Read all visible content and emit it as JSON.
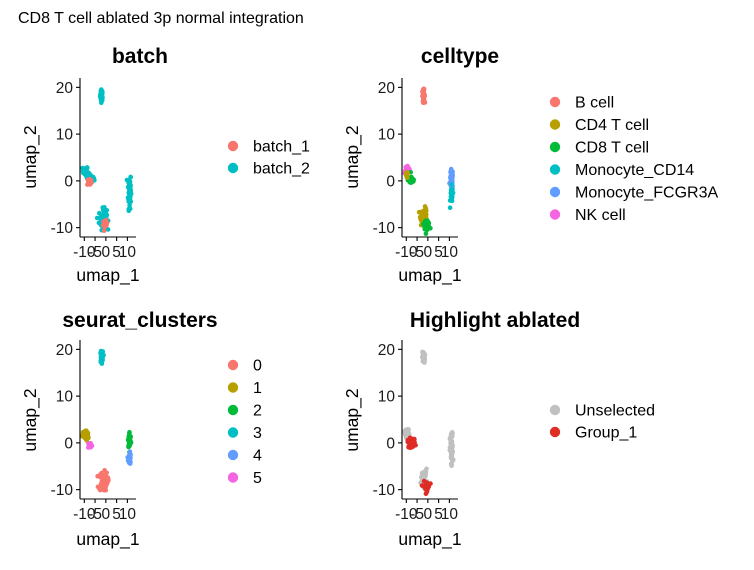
{
  "figure": {
    "title": "CD8 T cell ablated 3p normal integration"
  },
  "chart_data": [
    {
      "type": "scatter",
      "title": "batch",
      "xlabel": "umap_1",
      "ylabel": "umap_2",
      "xlim": [
        -12,
        14
      ],
      "ylim": [
        -12,
        22
      ],
      "xticks": [
        -10,
        -5,
        0,
        5,
        10
      ],
      "xtick_labels": [
        "-10",
        "-5",
        "0",
        "5",
        "10"
      ],
      "yticks": [
        -10,
        0,
        10,
        20
      ],
      "ytick_labels": [
        "-10",
        "0",
        "10",
        "20"
      ],
      "legend": "right",
      "series": [
        {
          "name": "batch_1",
          "color": "#F8766D"
        },
        {
          "name": "batch_2",
          "color": "#00BFC4"
        }
      ],
      "clusters": [
        {
          "cx": -2,
          "cy": 18.3,
          "sx": 0.3,
          "sy": 0.6,
          "n": 40,
          "series": 1
        },
        {
          "cx": -9.6,
          "cy": 2.1,
          "sx": 0.6,
          "sy": 0.5,
          "n": 25,
          "series": 1
        },
        {
          "cx": -7.2,
          "cy": 0.4,
          "sx": 0.9,
          "sy": 0.5,
          "n": 35,
          "series": 1
        },
        {
          "cx": -7.6,
          "cy": -0.2,
          "sx": 0.5,
          "sy": 0.4,
          "n": 20,
          "series": 0
        },
        {
          "cx": 11,
          "cy": -2,
          "sx": 0.35,
          "sy": 1.9,
          "n": 70,
          "series": 1
        },
        {
          "cx": -1.4,
          "cy": -8.2,
          "sx": 0.9,
          "sy": 1.1,
          "n": 60,
          "series": 1
        },
        {
          "cx": -0.3,
          "cy": -9.3,
          "sx": 0.5,
          "sy": 0.4,
          "n": 25,
          "series": 0
        }
      ]
    },
    {
      "type": "scatter",
      "title": "celltype",
      "xlabel": "umap_1",
      "ylabel": "umap_2",
      "xlim": [
        -12,
        14
      ],
      "ylim": [
        -12,
        22
      ],
      "xticks": [
        -10,
        -5,
        0,
        5,
        10
      ],
      "xtick_labels": [
        "-10",
        "-5",
        "0",
        "5",
        "10"
      ],
      "yticks": [
        -10,
        0,
        10,
        20
      ],
      "ytick_labels": [
        "-10",
        "0",
        "10",
        "20"
      ],
      "legend": "right",
      "series": [
        {
          "name": "B cell",
          "color": "#F8766D"
        },
        {
          "name": "CD4 T cell",
          "color": "#B79F00"
        },
        {
          "name": "CD8 T cell",
          "color": "#00BA38"
        },
        {
          "name": "Monocyte_CD14",
          "color": "#00BFC4"
        },
        {
          "name": "Monocyte_FCGR3A",
          "color": "#619CFF"
        },
        {
          "name": "NK cell",
          "color": "#F564E3"
        }
      ],
      "clusters": [
        {
          "cx": -2,
          "cy": 18.3,
          "sx": 0.3,
          "sy": 0.6,
          "n": 40,
          "series": 0
        },
        {
          "cx": -9.6,
          "cy": 2.4,
          "sx": 0.6,
          "sy": 0.4,
          "n": 25,
          "series": 5
        },
        {
          "cx": -7.6,
          "cy": 0.2,
          "sx": 0.8,
          "sy": 0.5,
          "n": 35,
          "series": 2
        },
        {
          "cx": -9.8,
          "cy": 1.2,
          "sx": 0.3,
          "sy": 0.3,
          "n": 10,
          "series": 1
        },
        {
          "cx": 11,
          "cy": 0.4,
          "sx": 0.35,
          "sy": 1.0,
          "n": 40,
          "series": 4
        },
        {
          "cx": 11,
          "cy": -3.2,
          "sx": 0.3,
          "sy": 1.0,
          "n": 30,
          "series": 3
        },
        {
          "cx": -1.8,
          "cy": -7.6,
          "sx": 0.8,
          "sy": 0.9,
          "n": 45,
          "series": 1
        },
        {
          "cx": -0.5,
          "cy": -9.3,
          "sx": 0.7,
          "sy": 0.5,
          "n": 35,
          "series": 2
        }
      ]
    },
    {
      "type": "scatter",
      "title": "seurat_clusters",
      "xlabel": "umap_1",
      "ylabel": "umap_2",
      "xlim": [
        -12,
        14
      ],
      "ylim": [
        -12,
        22
      ],
      "xticks": [
        -10,
        -5,
        0,
        5,
        10
      ],
      "xtick_labels": [
        "-10",
        "-5",
        "0",
        "5",
        "10"
      ],
      "yticks": [
        -10,
        0,
        10,
        20
      ],
      "ytick_labels": [
        "-10",
        "0",
        "10",
        "20"
      ],
      "legend": "right",
      "series": [
        {
          "name": "0",
          "color": "#F8766D"
        },
        {
          "name": "1",
          "color": "#B79F00"
        },
        {
          "name": "2",
          "color": "#00BA38"
        },
        {
          "name": "3",
          "color": "#00BFC4"
        },
        {
          "name": "4",
          "color": "#619CFF"
        },
        {
          "name": "5",
          "color": "#F564E3"
        }
      ],
      "clusters": [
        {
          "cx": -2,
          "cy": 18.3,
          "sx": 0.3,
          "sy": 0.6,
          "n": 40,
          "series": 3
        },
        {
          "cx": -9.4,
          "cy": 1.6,
          "sx": 0.7,
          "sy": 0.6,
          "n": 45,
          "series": 1
        },
        {
          "cx": -7.3,
          "cy": -0.6,
          "sx": 0.5,
          "sy": 0.4,
          "n": 18,
          "series": 5
        },
        {
          "cx": 11,
          "cy": 0.6,
          "sx": 0.35,
          "sy": 0.9,
          "n": 40,
          "series": 2
        },
        {
          "cx": 11,
          "cy": -3.3,
          "sx": 0.3,
          "sy": 0.8,
          "n": 25,
          "series": 4
        },
        {
          "cx": -1.2,
          "cy": -8.2,
          "sx": 1.0,
          "sy": 1.0,
          "n": 70,
          "series": 0
        }
      ]
    },
    {
      "type": "scatter",
      "title": "Highlight ablated",
      "xlabel": "umap_1",
      "ylabel": "umap_2",
      "xlim": [
        -12,
        14
      ],
      "ylim": [
        -12,
        22
      ],
      "xticks": [
        -10,
        -5,
        0,
        5,
        10
      ],
      "xtick_labels": [
        "-10",
        "-5",
        "0",
        "5",
        "10"
      ],
      "yticks": [
        -10,
        0,
        10,
        20
      ],
      "ytick_labels": [
        "-10",
        "0",
        "10",
        "20"
      ],
      "legend": "right",
      "series": [
        {
          "name": "Unselected",
          "color": "#C0C0C0"
        },
        {
          "name": "Group_1",
          "color": "#DE2D26"
        }
      ],
      "clusters": [
        {
          "cx": -2,
          "cy": 18.3,
          "sx": 0.3,
          "sy": 0.6,
          "n": 40,
          "series": 0
        },
        {
          "cx": -9.8,
          "cy": 2.2,
          "sx": 0.6,
          "sy": 0.5,
          "n": 25,
          "series": 0
        },
        {
          "cx": 11,
          "cy": -1.8,
          "sx": 0.35,
          "sy": 1.9,
          "n": 70,
          "series": 0
        },
        {
          "cx": -1.8,
          "cy": -7.4,
          "sx": 0.7,
          "sy": 0.9,
          "n": 35,
          "series": 0
        },
        {
          "cx": -7.6,
          "cy": 0,
          "sx": 0.9,
          "sy": 0.5,
          "n": 35,
          "series": 1
        },
        {
          "cx": -0.6,
          "cy": -9.3,
          "sx": 0.7,
          "sy": 0.5,
          "n": 35,
          "series": 1
        }
      ]
    }
  ]
}
